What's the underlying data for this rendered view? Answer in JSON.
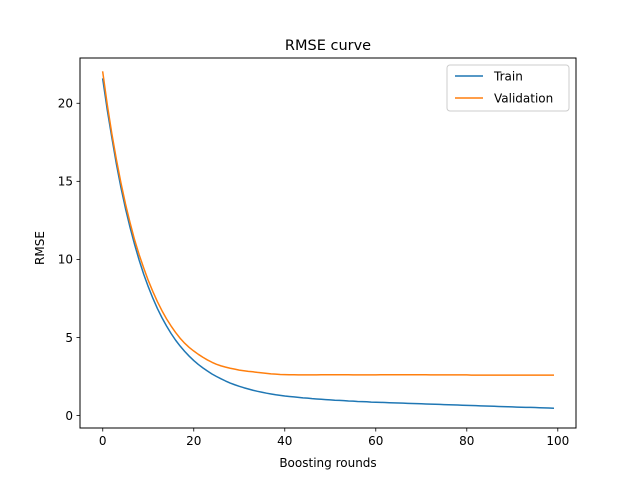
{
  "chart_data": {
    "type": "line",
    "title": "RMSE curve",
    "xlabel": "Boosting rounds",
    "ylabel": "RMSE",
    "xlim": [
      -5,
      104
    ],
    "ylim": [
      -0.8,
      22.9
    ],
    "xticks": [
      0,
      20,
      40,
      60,
      80,
      100
    ],
    "yticks": [
      0,
      5,
      10,
      15,
      20
    ],
    "grid": false,
    "legend_position": "top-right",
    "x": [
      0,
      1,
      2,
      3,
      4,
      5,
      6,
      7,
      8,
      9,
      10,
      11,
      12,
      13,
      14,
      15,
      16,
      17,
      18,
      19,
      20,
      21,
      22,
      23,
      24,
      25,
      26,
      27,
      28,
      29,
      30,
      31,
      32,
      33,
      34,
      35,
      36,
      37,
      38,
      39,
      40,
      41,
      42,
      43,
      44,
      45,
      46,
      47,
      48,
      49,
      50,
      51,
      52,
      53,
      54,
      55,
      56,
      57,
      58,
      59,
      60,
      61,
      62,
      63,
      64,
      65,
      66,
      67,
      68,
      69,
      70,
      71,
      72,
      73,
      74,
      75,
      76,
      77,
      78,
      79,
      80,
      81,
      82,
      83,
      84,
      85,
      86,
      87,
      88,
      89,
      90,
      91,
      92,
      93,
      94,
      95,
      96,
      97,
      98,
      99
    ],
    "series": [
      {
        "name": "Train",
        "color": "#1f77b4",
        "values": [
          21.55,
          19.55,
          17.8,
          16.1,
          14.6,
          13.25,
          12.05,
          10.95,
          9.95,
          9.05,
          8.25,
          7.52,
          6.86,
          6.27,
          5.74,
          5.26,
          4.83,
          4.45,
          4.11,
          3.8,
          3.52,
          3.27,
          3.05,
          2.85,
          2.66,
          2.5,
          2.35,
          2.21,
          2.08,
          1.97,
          1.87,
          1.78,
          1.7,
          1.62,
          1.55,
          1.49,
          1.43,
          1.38,
          1.33,
          1.29,
          1.25,
          1.22,
          1.19,
          1.16,
          1.13,
          1.11,
          1.08,
          1.06,
          1.04,
          1.02,
          1.0,
          0.98,
          0.97,
          0.95,
          0.93,
          0.92,
          0.9,
          0.89,
          0.88,
          0.86,
          0.85,
          0.84,
          0.83,
          0.82,
          0.81,
          0.8,
          0.79,
          0.78,
          0.77,
          0.76,
          0.75,
          0.74,
          0.73,
          0.72,
          0.71,
          0.7,
          0.69,
          0.68,
          0.67,
          0.66,
          0.65,
          0.64,
          0.63,
          0.62,
          0.61,
          0.6,
          0.59,
          0.58,
          0.57,
          0.56,
          0.55,
          0.54,
          0.53,
          0.52,
          0.52,
          0.51,
          0.5,
          0.49,
          0.48,
          0.47
        ]
      },
      {
        "name": "Validation",
        "color": "#ff7f0e",
        "values": [
          22.0,
          19.9,
          18.05,
          16.4,
          14.9,
          13.55,
          12.35,
          11.25,
          10.3,
          9.45,
          8.65,
          7.95,
          7.3,
          6.72,
          6.2,
          5.74,
          5.32,
          4.95,
          4.63,
          4.36,
          4.13,
          3.92,
          3.73,
          3.56,
          3.41,
          3.28,
          3.18,
          3.1,
          3.03,
          2.97,
          2.91,
          2.87,
          2.83,
          2.8,
          2.76,
          2.73,
          2.7,
          2.67,
          2.65,
          2.63,
          2.62,
          2.61,
          2.61,
          2.6,
          2.6,
          2.6,
          2.6,
          2.6,
          2.61,
          2.61,
          2.61,
          2.61,
          2.61,
          2.61,
          2.61,
          2.6,
          2.6,
          2.6,
          2.6,
          2.6,
          2.6,
          2.61,
          2.61,
          2.61,
          2.61,
          2.61,
          2.61,
          2.61,
          2.61,
          2.61,
          2.61,
          2.61,
          2.6,
          2.6,
          2.6,
          2.6,
          2.6,
          2.6,
          2.6,
          2.6,
          2.6,
          2.59,
          2.59,
          2.59,
          2.59,
          2.59,
          2.59,
          2.59,
          2.59,
          2.59,
          2.59,
          2.59,
          2.59,
          2.59,
          2.59,
          2.59,
          2.59,
          2.59,
          2.59,
          2.59
        ]
      }
    ]
  }
}
